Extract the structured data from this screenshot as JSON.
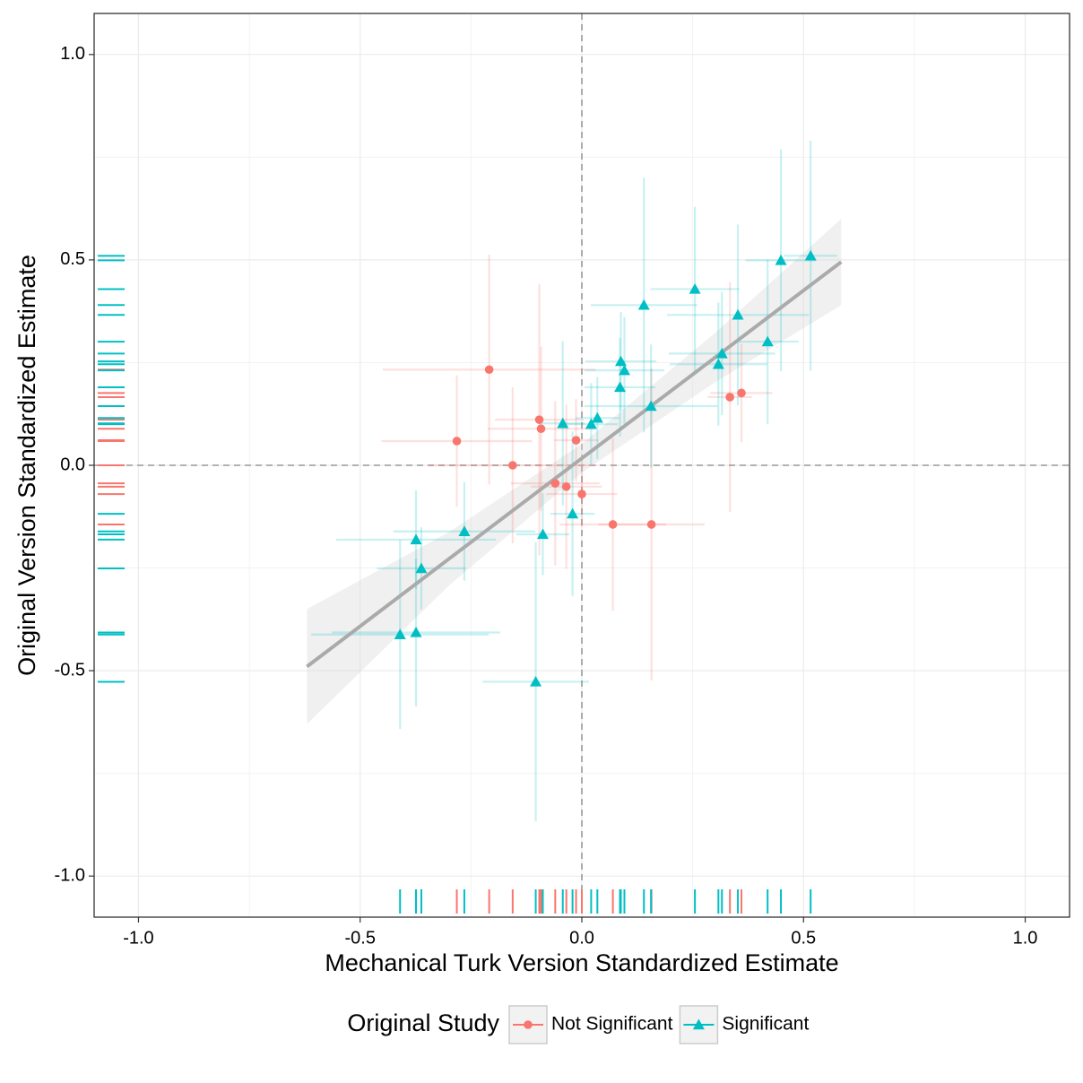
{
  "chart_data": {
    "type": "scatter",
    "x_label": "Mechanical Turk Version Standardized Estimate",
    "y_label": "Original Version Standardized Estimate",
    "legend_title": "Original Study",
    "xlim": [
      -1.1,
      1.1
    ],
    "ylim": [
      -1.1,
      1.1
    ],
    "xticks": [
      {
        "value": -1,
        "label": "-1.0"
      },
      -0.5,
      {
        "value": 0,
        "label": "0.0"
      },
      0.5,
      {
        "value": 1,
        "label": "1.0"
      }
    ],
    "yticks": [
      {
        "value": -1,
        "label": "-1.0"
      },
      -0.5,
      {
        "value": 0,
        "label": "0.0"
      },
      0.5,
      {
        "value": 1,
        "label": "1.0"
      }
    ],
    "grid": true,
    "legend_position": "bottom",
    "ref_x": 0,
    "ref_y": 0,
    "fit": {
      "color": "#aaaaaa",
      "band_color": "#d9d9d9",
      "x": [
        -0.62,
        -0.3,
        0,
        0.3,
        0.585
      ],
      "y": [
        -0.49,
        -0.228,
        0.017,
        0.262,
        0.495
      ],
      "lower": [
        -0.63,
        -0.293,
        -0.018,
        0.202,
        0.39
      ],
      "upper": [
        -0.35,
        -0.163,
        0.052,
        0.322,
        0.6
      ]
    },
    "series": [
      {
        "name": "Not Significant",
        "color": "#F8766D",
        "marker": "circle",
        "x": [
          -0.209,
          -0.282,
          -0.156,
          -0.096,
          -0.092,
          -0.013,
          -0.06,
          -0.035,
          0,
          0.07,
          0.157,
          0.334,
          0.36
        ],
        "values": [
          0.233,
          0.059,
          0,
          0.111,
          0.089,
          0.061,
          -0.044,
          -0.052,
          -0.07,
          -0.144,
          -0.144,
          0.166,
          0.176
        ],
        "xerr": [
          0.24,
          0.17,
          0.19,
          0.1,
          0.12,
          0.05,
          0.1,
          0.08,
          0.08,
          0.12,
          0.12,
          0.05,
          0.07
        ],
        "yerr": [
          0.28,
          0.16,
          0.19,
          0.33,
          0.2,
          0.1,
          0.2,
          0.2,
          0.08,
          0.21,
          0.38,
          0.28,
          0.12
        ]
      },
      {
        "name": "Significant",
        "color": "#00BFC4",
        "marker": "triangle",
        "x": [
          -0.41,
          -0.374,
          -0.374,
          -0.362,
          -0.265,
          -0.104,
          -0.088,
          -0.043,
          -0.021,
          0.021,
          0.035,
          0.086,
          0.088,
          0.096,
          0.14,
          0.156,
          0.255,
          0.308,
          0.316,
          0.352,
          0.419,
          0.449,
          0.516
        ],
        "values": [
          -0.412,
          -0.407,
          -0.181,
          -0.251,
          -0.161,
          -0.527,
          -0.168,
          0.102,
          -0.118,
          0.1,
          0.115,
          0.19,
          0.253,
          0.231,
          0.39,
          0.144,
          0.429,
          0.246,
          0.272,
          0.366,
          0.301,
          0.499,
          0.51
        ],
        "xerr": [
          0.2,
          0.19,
          0.18,
          0.1,
          0.16,
          0.12,
          0.06,
          0.05,
          0.05,
          0.06,
          0.05,
          0.08,
          0.08,
          0.09,
          0.12,
          0.15,
          0.1,
          0.11,
          0.12,
          0.16,
          0.07,
          0.08,
          0.06
        ],
        "yerr": [
          0.23,
          0.18,
          0.12,
          0.1,
          0.12,
          0.34,
          0.1,
          0.2,
          0.2,
          0.1,
          0.1,
          0.12,
          0.12,
          0.13,
          0.31,
          0.15,
          0.2,
          0.15,
          0.15,
          0.22,
          0.2,
          0.27,
          0.28
        ]
      }
    ]
  }
}
